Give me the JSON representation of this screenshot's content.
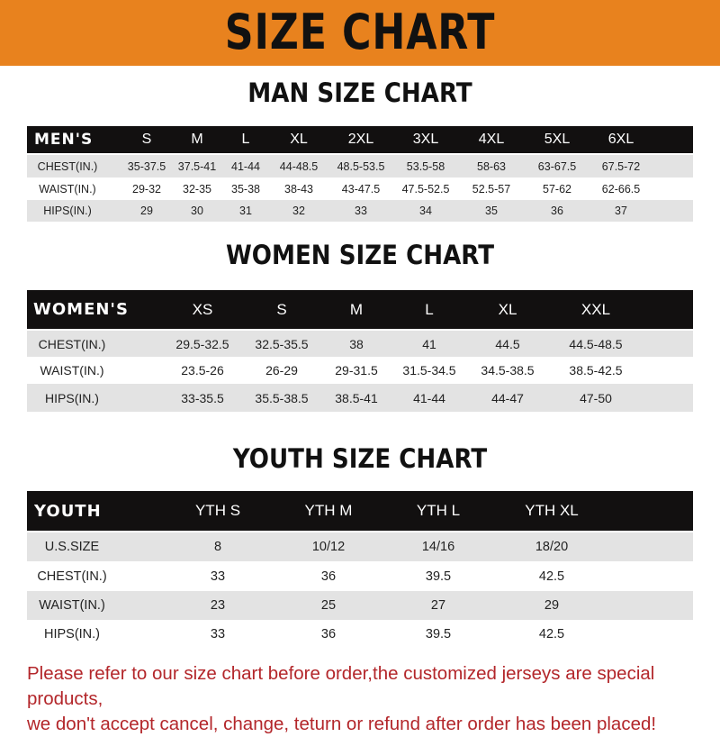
{
  "banner": {
    "title": "SIZE CHART",
    "color": "#E8821E"
  },
  "men": {
    "title": "MAN SIZE CHART",
    "headers": [
      "MEN'S",
      "S",
      "M",
      "L",
      "XL",
      "2XL",
      "3XL",
      "4XL",
      "5XL",
      "6XL"
    ],
    "rows": [
      [
        "CHEST(IN.)",
        "35-37.5",
        "37.5-41",
        "41-44",
        "44-48.5",
        "48.5-53.5",
        "53.5-58",
        "58-63",
        "63-67.5",
        "67.5-72"
      ],
      [
        "WAIST(IN.)",
        "29-32",
        "32-35",
        "35-38",
        "38-43",
        "43-47.5",
        "47.5-52.5",
        "52.5-57",
        "57-62",
        "62-66.5"
      ],
      [
        "HIPS(IN.)",
        "29",
        "30",
        "31",
        "32",
        "33",
        "34",
        "35",
        "36",
        "37"
      ]
    ]
  },
  "women": {
    "title": "WOMEN SIZE CHART",
    "headers": [
      "WOMEN'S",
      "XS",
      "S",
      "M",
      "L",
      "XL",
      "XXL"
    ],
    "rows": [
      [
        "CHEST(IN.)",
        "29.5-32.5",
        "32.5-35.5",
        "38",
        "41",
        "44.5",
        "44.5-48.5"
      ],
      [
        "WAIST(IN.)",
        "23.5-26",
        "26-29",
        "29-31.5",
        "31.5-34.5",
        "34.5-38.5",
        "38.5-42.5"
      ],
      [
        "HIPS(IN.)",
        "33-35.5",
        "35.5-38.5",
        "38.5-41",
        "41-44",
        "44-47",
        "47-50"
      ]
    ]
  },
  "youth": {
    "title": "YOUTH SIZE CHART",
    "headers": [
      "YOUTH",
      "YTH S",
      "YTH M",
      "YTH L",
      "YTH XL"
    ],
    "rows": [
      [
        "U.S.SIZE",
        "8",
        "10/12",
        "14/16",
        "18/20"
      ],
      [
        "CHEST(IN.)",
        "33",
        "36",
        "39.5",
        "42.5"
      ],
      [
        "WAIST(IN.)",
        "23",
        "25",
        "27",
        "29"
      ],
      [
        "HIPS(IN.)",
        "33",
        "36",
        "39.5",
        "42.5"
      ]
    ]
  },
  "footer": {
    "line1": "Please refer to our size chart before order,the customized jerseys are special products,",
    "line2": "we don't accept cancel, change, teturn or refund after order has been placed!",
    "color": "#B3262A"
  }
}
